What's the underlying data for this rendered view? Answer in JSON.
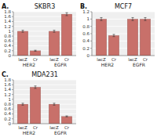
{
  "chart_data": [
    {
      "type": "bar",
      "title": "SKBR3",
      "annotations": [
        "A."
      ],
      "categories": [
        "HER2",
        "EGFR"
      ],
      "series": [
        {
          "name": "lacZ",
          "color": "#C8706A",
          "values": [
            1.0,
            1.0
          ],
          "errors": [
            0.04,
            0.04
          ]
        },
        {
          "name": "Cr",
          "color": "#C8706A",
          "values": [
            0.2,
            1.7
          ],
          "errors": [
            0.02,
            0.06
          ]
        }
      ],
      "ylim": [
        0,
        1.8
      ],
      "yticks": [
        0,
        0.2,
        0.4,
        0.6,
        0.8,
        1,
        1.2,
        1.4,
        1.6,
        1.8
      ],
      "grid": true
    },
    {
      "type": "bar",
      "title": "MCF7",
      "annotations": [
        "B."
      ],
      "categories": [
        "HER2",
        "EGFR"
      ],
      "series": [
        {
          "name": "lacZ",
          "color": "#C8706A",
          "values": [
            1.0,
            1.0
          ],
          "errors": [
            0.04,
            0.04
          ]
        },
        {
          "name": "Cr",
          "color": "#C8706A",
          "values": [
            0.55,
            1.0
          ],
          "errors": [
            0.03,
            0.04
          ]
        }
      ],
      "ylim": [
        0,
        1.2
      ],
      "yticks": [
        0,
        0.2,
        0.4,
        0.6,
        0.8,
        1,
        1.2
      ],
      "grid": true
    },
    {
      "type": "bar",
      "title": "MDA231",
      "annotations": [
        "C."
      ],
      "categories": [
        "HER2",
        "EGFR"
      ],
      "series": [
        {
          "name": "lacZ",
          "color": "#C8706A",
          "values": [
            0.8,
            0.8
          ],
          "errors": [
            0.04,
            0.04
          ]
        },
        {
          "name": "Cr",
          "color": "#C8706A",
          "values": [
            1.5,
            0.3
          ],
          "errors": [
            0.05,
            0.02
          ]
        }
      ],
      "ylim": [
        0,
        1.8
      ],
      "yticks": [
        0,
        0.2,
        0.4,
        0.6,
        0.8,
        1,
        1.2,
        1.4,
        1.6,
        1.8
      ],
      "grid": true
    }
  ]
}
